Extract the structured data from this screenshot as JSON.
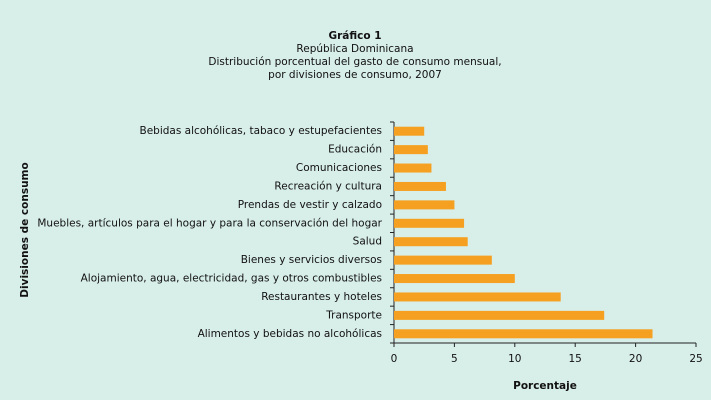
{
  "chart_data": {
    "type": "barh",
    "title": "Gráfico 1",
    "subtitle": [
      "República Dominicana",
      "Distribución porcentual del gasto de consumo mensual,",
      "por divisiones de consumo, 2007"
    ],
    "xlabel": "Porcentaje",
    "ylabel": "Divisiones de consumo",
    "categories": [
      "Bebidas alcohólicas, tabaco y estupefacientes",
      "Educación",
      "Comunicaciones",
      "Recreación y cultura",
      "Prendas de vestir y calzado",
      "Muebles, artículos para el hogar y para la conservación del hogar",
      "Salud",
      "Bienes y servicios diversos",
      "Alojamiento, agua, electricidad, gas y otros combustibles",
      "Restaurantes y hoteles",
      "Transporte",
      "Alimentos y bebidas no alcohólicas"
    ],
    "values": [
      2.5,
      2.8,
      3.1,
      4.3,
      5.0,
      5.8,
      6.1,
      8.1,
      10.0,
      13.8,
      17.4,
      21.4
    ],
    "color": "#f5a020",
    "xlim": [
      0,
      25
    ],
    "xticks": [
      0,
      5,
      10,
      15,
      20,
      25
    ]
  }
}
